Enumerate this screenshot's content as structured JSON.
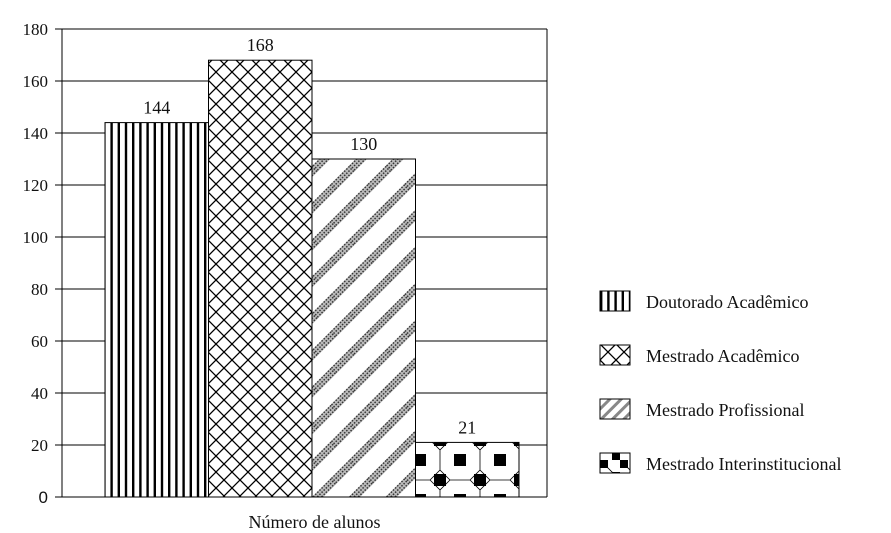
{
  "chart_data": {
    "type": "bar",
    "title": "",
    "xlabel": "Número de alunos",
    "ylabel": "",
    "ylim": [
      0,
      180
    ],
    "yticks": [
      0,
      20,
      40,
      60,
      80,
      100,
      120,
      140,
      160,
      180
    ],
    "grid": true,
    "legend_position": "right",
    "categories": [
      "Doutorado Acadêmico",
      "Mestrado Acadêmico",
      "Mestrado Profissional",
      "Mestrado Interinstitucional"
    ],
    "values": [
      144,
      168,
      130,
      21
    ],
    "patterns": [
      "vertical-lines",
      "crosshatch",
      "diagonal-dotted",
      "checker-blocks"
    ],
    "colors": {
      "stroke": "#000000",
      "fill": "#ffffff",
      "grid": "#000000"
    }
  }
}
